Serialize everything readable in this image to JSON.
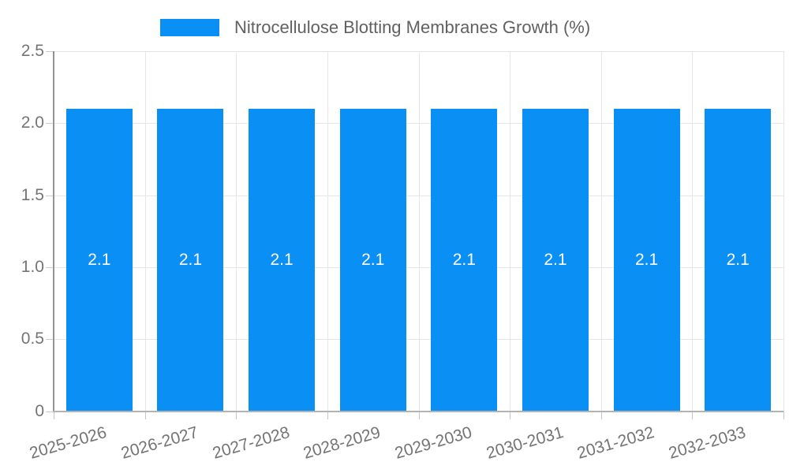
{
  "chart_data": {
    "type": "bar",
    "title": "",
    "legend_position": "top",
    "legend_entries": [
      {
        "label": "Nitrocellulose Blotting Membranes Growth (%)",
        "color": "#0a8ff5"
      }
    ],
    "categories": [
      "2025-2026",
      "2026-2027",
      "2027-2028",
      "2028-2029",
      "2029-2030",
      "2030-2031",
      "2031-2032",
      "2032-2033"
    ],
    "series": [
      {
        "name": "Nitrocellulose Blotting Membranes Growth (%)",
        "values": [
          2.1,
          2.1,
          2.1,
          2.1,
          2.1,
          2.1,
          2.1,
          2.1
        ]
      }
    ],
    "bar_value_labels": [
      "2.1",
      "2.1",
      "2.1",
      "2.1",
      "2.1",
      "2.1",
      "2.1",
      "2.1"
    ],
    "xlabel": "",
    "ylabel": "",
    "ylim": [
      0,
      2.5
    ],
    "yticks": [
      {
        "value": 0,
        "label": "0"
      },
      {
        "value": 0.5,
        "label": "0.5"
      },
      {
        "value": 1,
        "label": "1.0"
      },
      {
        "value": 1.5,
        "label": "1.5"
      },
      {
        "value": 2,
        "label": "2.0"
      },
      {
        "value": 2.5,
        "label": "2.5"
      }
    ],
    "grid": true,
    "colors": {
      "bar": "#0a8ff5",
      "grid": "#e6e6e6",
      "axis_line": "#949494",
      "baseline": "#b3b3b3",
      "tick_text": "#757575",
      "legend_text": "#616161",
      "bar_label_text": "#ffffff",
      "background": "#ffffff"
    }
  }
}
